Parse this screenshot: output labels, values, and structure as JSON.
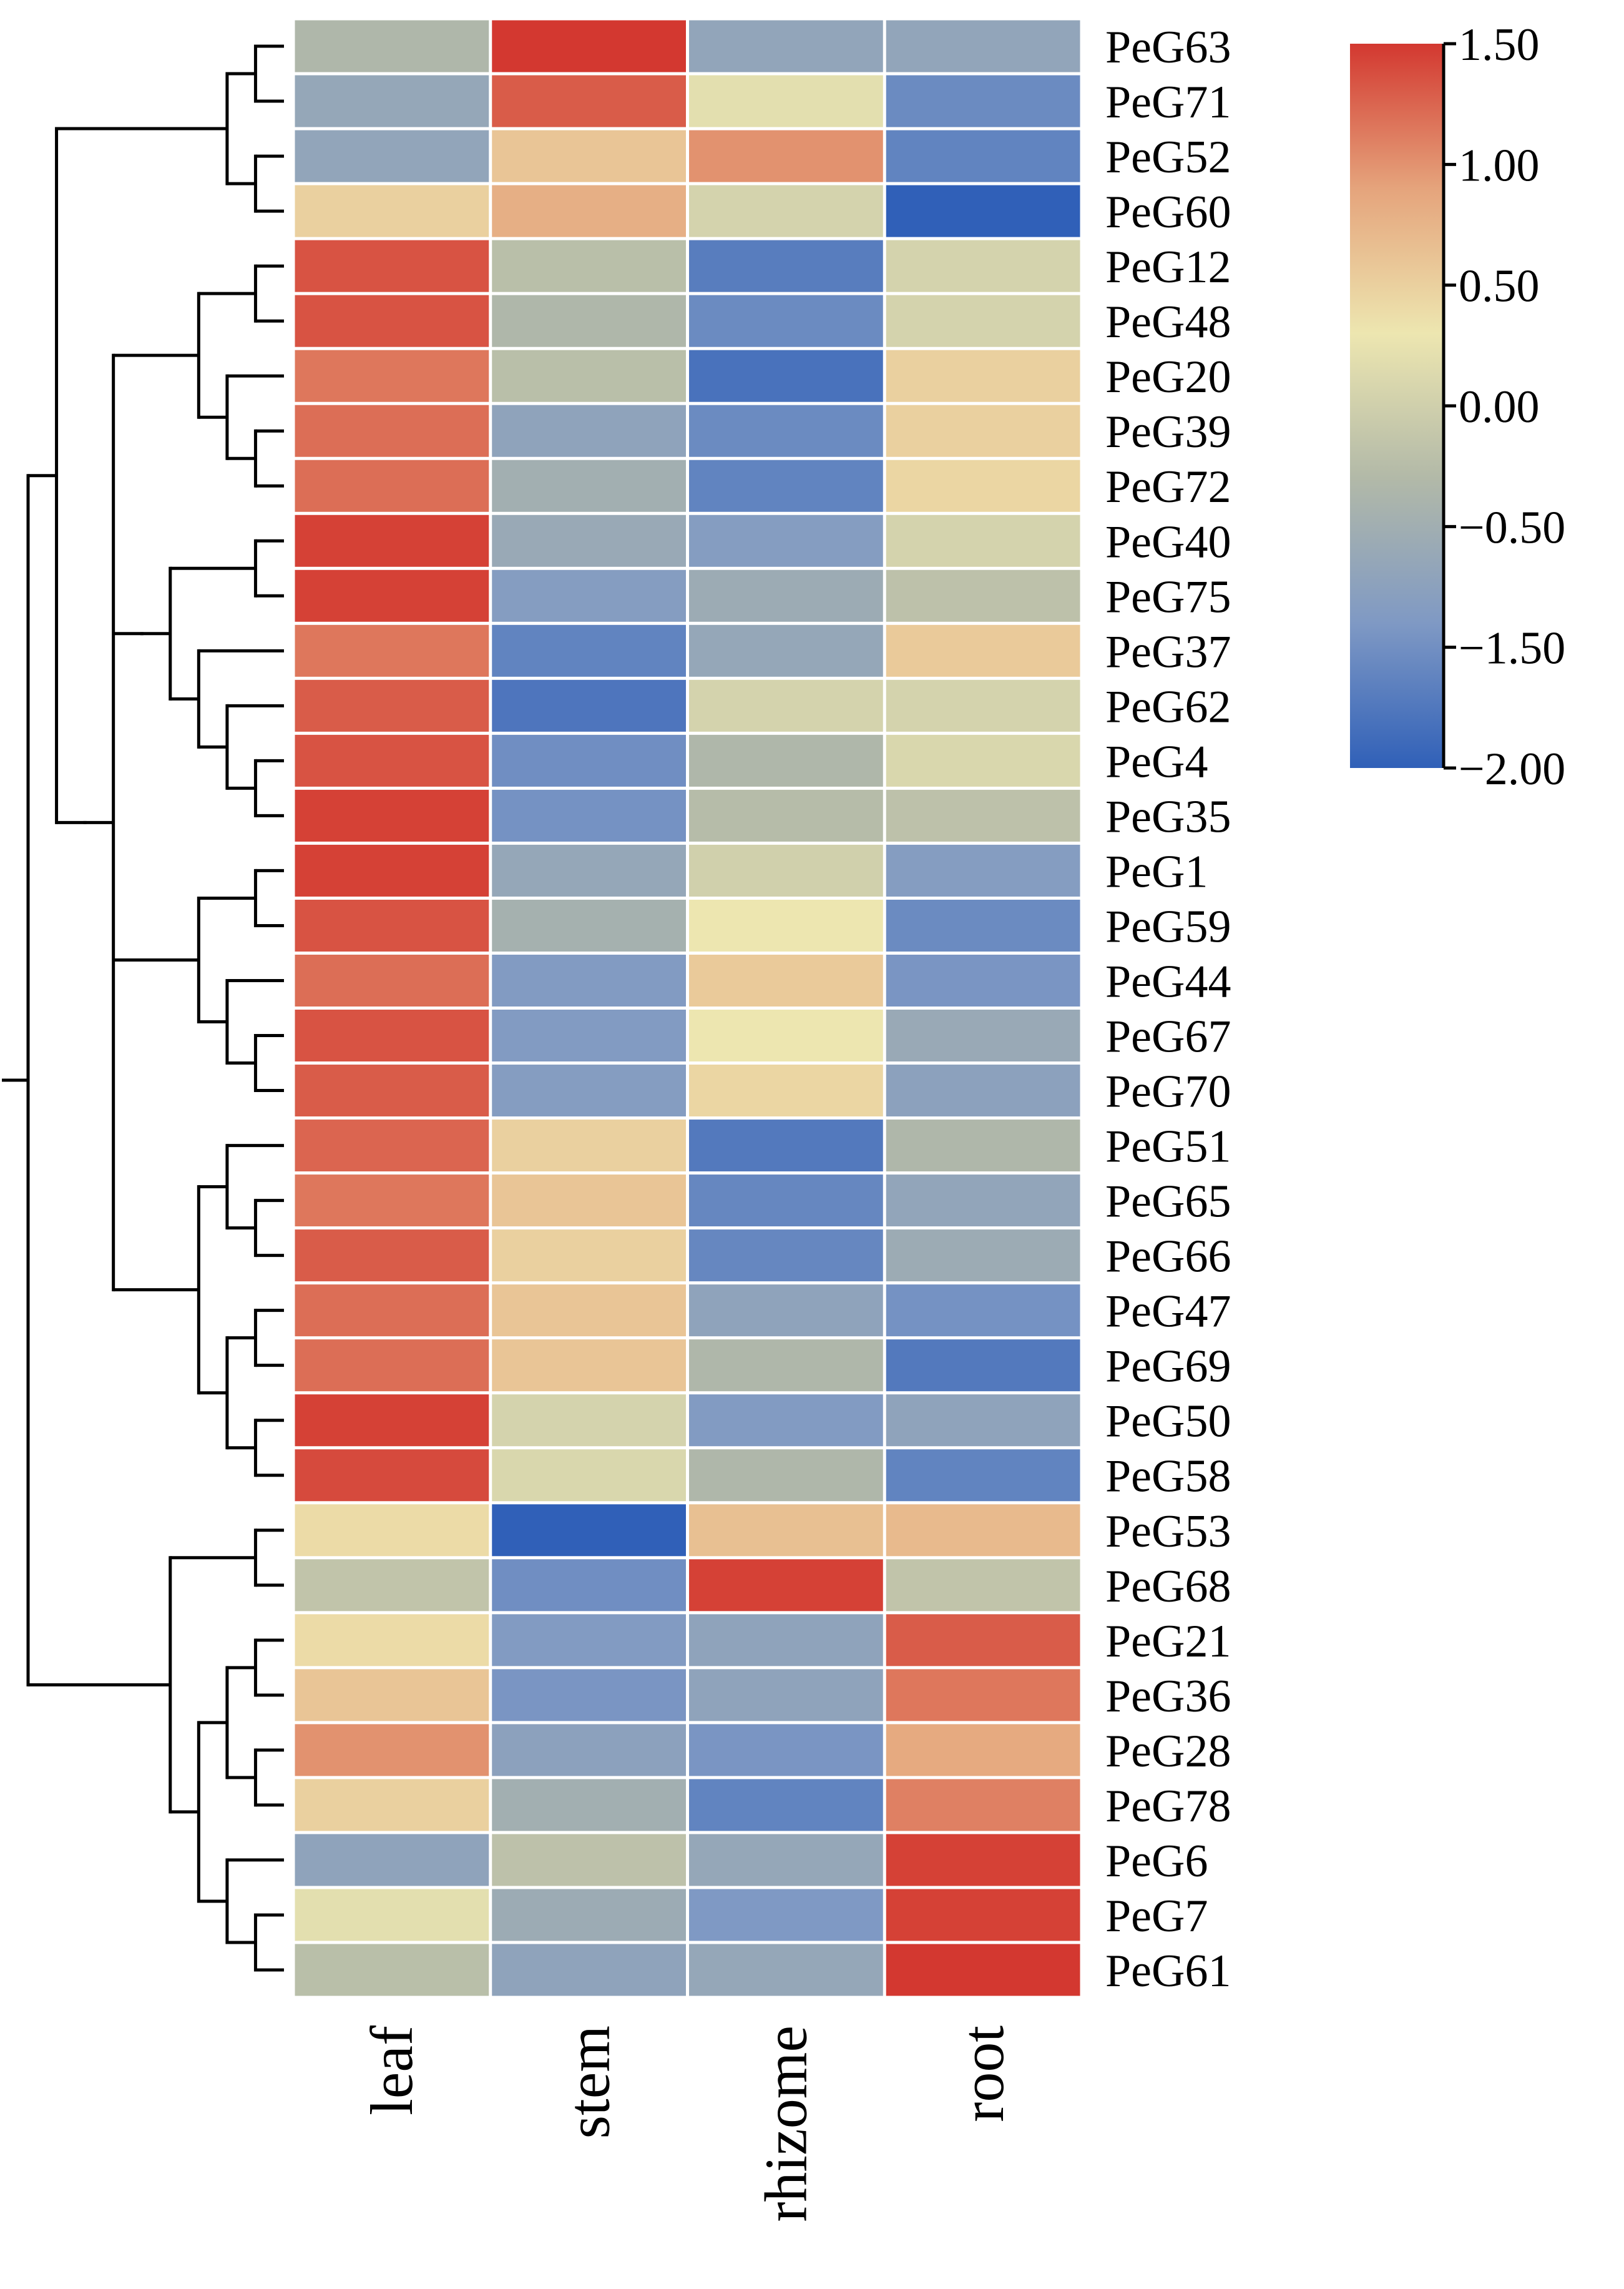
{
  "chart_data": {
    "type": "heatmap",
    "columns": [
      "leaf",
      "stem",
      "rhizome",
      "root"
    ],
    "rows": [
      "PeG63",
      "PeG71",
      "PeG52",
      "PeG60",
      "PeG12",
      "PeG48",
      "PeG20",
      "PeG39",
      "PeG72",
      "PeG40",
      "PeG75",
      "PeG37",
      "PeG62",
      "PeG4",
      "PeG35",
      "PeG1",
      "PeG59",
      "PeG44",
      "PeG67",
      "PeG70",
      "PeG51",
      "PeG65",
      "PeG66",
      "PeG47",
      "PeG69",
      "PeG50",
      "PeG58",
      "PeG53",
      "PeG68",
      "PeG21",
      "PeG36",
      "PeG28",
      "PeG78",
      "PeG6",
      "PeG7",
      "PeG61"
    ],
    "values": [
      [
        -0.45,
        1.5,
        -0.9,
        -0.9
      ],
      [
        -0.85,
        1.3,
        0.2,
        -1.4
      ],
      [
        -0.9,
        0.6,
        1.0,
        -1.5
      ],
      [
        0.5,
        0.8,
        0.05,
        -2.0
      ],
      [
        1.35,
        -0.3,
        -1.6,
        0.05
      ],
      [
        1.35,
        -0.45,
        -1.4,
        0.05
      ],
      [
        1.15,
        -0.3,
        -1.75,
        0.5
      ],
      [
        1.2,
        -0.95,
        -1.4,
        0.5
      ],
      [
        1.2,
        -0.65,
        -1.5,
        0.45
      ],
      [
        1.45,
        -0.8,
        -1.1,
        0.05
      ],
      [
        1.45,
        -1.1,
        -0.75,
        -0.25
      ],
      [
        1.15,
        -1.5,
        -0.85,
        0.55
      ],
      [
        1.3,
        -1.7,
        0.05,
        0.05
      ],
      [
        1.35,
        -1.35,
        -0.45,
        0.1
      ],
      [
        1.45,
        -1.3,
        -0.35,
        -0.25
      ],
      [
        1.45,
        -0.85,
        0.0,
        -1.1
      ],
      [
        1.35,
        -0.6,
        0.3,
        -1.4
      ],
      [
        1.2,
        -1.15,
        0.55,
        -1.25
      ],
      [
        1.35,
        -1.15,
        0.3,
        -0.8
      ],
      [
        1.3,
        -1.1,
        0.45,
        -1.0
      ],
      [
        1.25,
        0.5,
        -1.65,
        -0.45
      ],
      [
        1.15,
        0.6,
        -1.45,
        -0.9
      ],
      [
        1.3,
        0.5,
        -1.45,
        -0.75
      ],
      [
        1.2,
        0.6,
        -0.95,
        -1.3
      ],
      [
        1.2,
        0.6,
        -0.45,
        -1.65
      ],
      [
        1.45,
        0.05,
        -1.15,
        -0.95
      ],
      [
        1.4,
        0.1,
        -0.45,
        -1.5
      ],
      [
        0.4,
        -2.0,
        0.65,
        0.7
      ],
      [
        -0.2,
        -1.35,
        1.45,
        -0.2
      ],
      [
        0.4,
        -1.15,
        -0.95,
        1.3
      ],
      [
        0.6,
        -1.25,
        -0.95,
        1.15
      ],
      [
        1.0,
        -1.0,
        -1.25,
        0.85
      ],
      [
        0.5,
        -0.65,
        -1.5,
        1.1
      ],
      [
        -0.95,
        -0.25,
        -0.85,
        1.45
      ],
      [
        0.2,
        -0.75,
        -1.2,
        1.45
      ],
      [
        -0.3,
        -0.95,
        -0.85,
        1.5
      ]
    ],
    "colorbar": {
      "ticks": [
        1.5,
        1.0,
        0.5,
        0.0,
        -0.5,
        -1.5,
        -2.0
      ],
      "tick_labels": [
        "1.50",
        "1.00",
        "0.50",
        "0.00",
        "−0.50",
        "−1.50",
        "−2.00"
      ],
      "color_stops": [
        "#3060B8",
        "#7F99C4",
        "#B2B9A8",
        "#EDE6B0",
        "#E5A47C",
        "#D33830"
      ],
      "range": [
        -2.0,
        1.5
      ],
      "placement": "top-right"
    },
    "dendrogram": {
      "side": "left",
      "newick": "((((PeG63,PeG71),(PeG52,PeG60)),((((PeG12,PeG48),(PeG20,(PeG39,PeG72))),(((PeG40,PeG75),(PeG37,(PeG62,(PeG4,PeG35))))),((PeG1,PeG59),(PeG44,(PeG67,PeG70))),((PeG51,(PeG65,PeG66)),((PeG47,PeG69),(PeG50,PeG58)))))),((PeG53,PeG68),(((PeG21,PeG36),(PeG28,PeG78)),(PeG6,(PeG7,PeG61))))))"
    }
  }
}
